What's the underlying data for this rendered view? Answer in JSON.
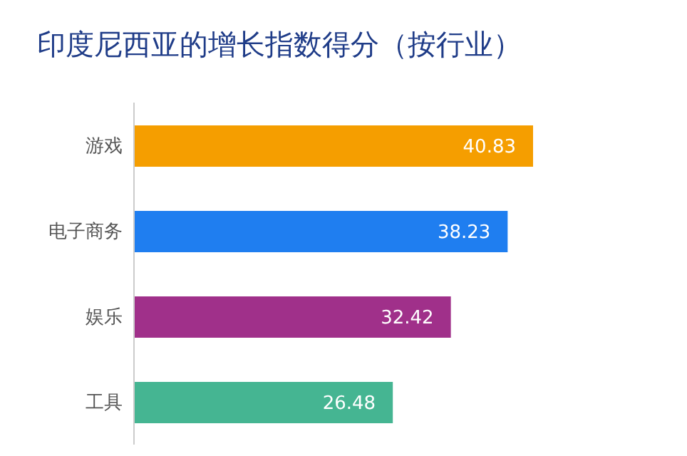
{
  "chart_data": {
    "type": "bar",
    "orientation": "horizontal",
    "title": "印度尼西亚的增长指数得分（按行业）",
    "categories": [
      "游戏",
      "电子商务",
      "娱乐",
      "工具"
    ],
    "values": [
      40.83,
      38.23,
      32.42,
      26.48
    ],
    "colors": [
      "#f59e00",
      "#1f7ef0",
      "#a0308a",
      "#45b592"
    ],
    "data_labels": true
  }
}
